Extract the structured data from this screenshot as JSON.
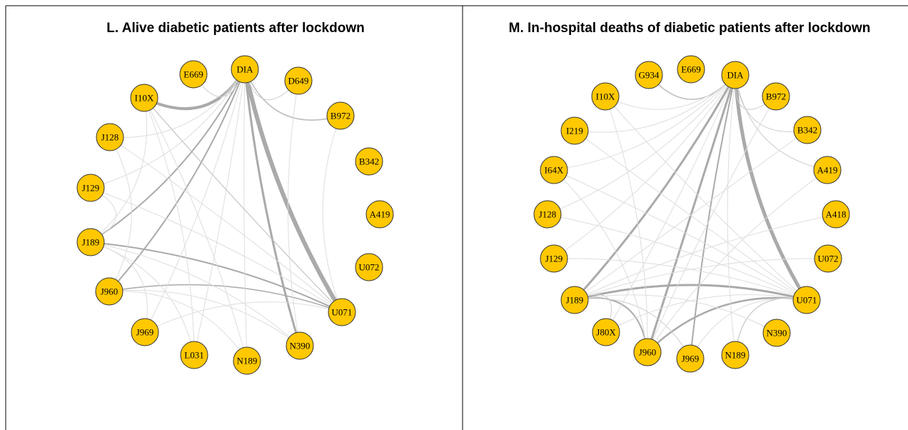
{
  "panels": [
    {
      "title": "L. Alive diabetic patients after lockdown",
      "nodes": [
        "DIA",
        "E669",
        "D649",
        "I10X",
        "B972",
        "J128",
        "B342",
        "J129",
        "A419",
        "J189",
        "U072",
        "J960",
        "U071",
        "J969",
        "N390",
        "L031",
        "N189"
      ]
    },
    {
      "title": "M. In-hospital deaths of diabetic patients after lockdown",
      "nodes": [
        "DIA",
        "E669",
        "G934",
        "B972",
        "I10X",
        "B342",
        "I219",
        "A419",
        "I64X",
        "A418",
        "J128",
        "U072",
        "J129",
        "U071",
        "J189",
        "N390",
        "J80X",
        "N189",
        "J960",
        "J969"
      ]
    }
  ]
}
